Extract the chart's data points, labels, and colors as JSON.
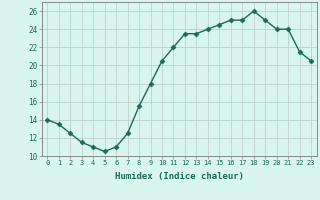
{
  "x": [
    0,
    1,
    2,
    3,
    4,
    5,
    6,
    7,
    8,
    9,
    10,
    11,
    12,
    13,
    14,
    15,
    16,
    17,
    18,
    19,
    20,
    21,
    22,
    23
  ],
  "y": [
    14.0,
    13.5,
    12.5,
    11.5,
    11.0,
    10.5,
    11.0,
    12.5,
    15.5,
    18.0,
    20.5,
    22.0,
    23.5,
    23.5,
    24.0,
    24.5,
    25.0,
    25.0,
    26.0,
    25.0,
    24.0,
    24.0,
    21.5,
    20.5
  ],
  "xlabel": "Humidex (Indice chaleur)",
  "xlim": [
    -0.5,
    23.5
  ],
  "ylim": [
    10,
    27
  ],
  "yticks": [
    10,
    12,
    14,
    16,
    18,
    20,
    22,
    24,
    26
  ],
  "xtick_labels": [
    "0",
    "1",
    "2",
    "3",
    "4",
    "5",
    "6",
    "7",
    "8",
    "9",
    "10",
    "11",
    "12",
    "13",
    "14",
    "15",
    "16",
    "17",
    "18",
    "19",
    "20",
    "21",
    "22",
    "23"
  ],
  "line_color": "#1a6b5a",
  "marker": "D",
  "marker_size": 2.5,
  "bg_color": "#d9f5f0",
  "grid_color": "#c0d0cc",
  "axes_color": "#888888",
  "label_color": "#1a6b5a",
  "tick_label_color": "#1a6b5a"
}
